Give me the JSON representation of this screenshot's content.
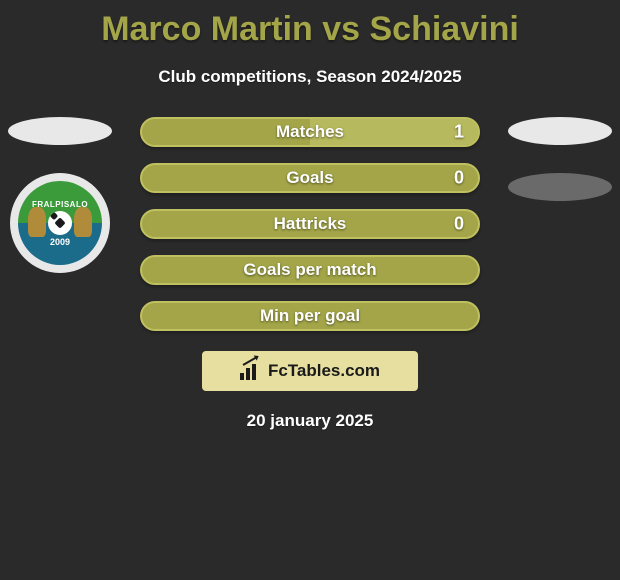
{
  "background_color": "#2a2a2a",
  "title": {
    "text": "Marco Martin vs Schiavini",
    "color": "#a3a548",
    "fontsize": 34
  },
  "subtitle": {
    "text": "Club competitions, Season 2024/2025",
    "color": "#ffffff",
    "fontsize": 17
  },
  "left_side": {
    "ellipse_color": "#e8e8e8",
    "badge": {
      "outer_color": "#e8e8e8",
      "inner_gradient_top": "#3b9b3b",
      "inner_gradient_bottom": "#1b6b8a",
      "text_top": "FRALPISALO",
      "year": "2009",
      "text_color": "#ffffff",
      "ball_color": "#ffffff",
      "ball_spot_color": "#1a1a1a",
      "lion_color": "#b08b3a"
    }
  },
  "right_side": {
    "ellipse1_color": "#e8e8e8",
    "ellipse2_color": "#6a6a6a"
  },
  "bars": {
    "fill_color": "#a3a548",
    "border_color": "#bfc060",
    "text_color": "#ffffff",
    "height": 30,
    "label_fontsize": 17,
    "value_fontsize": 18,
    "rows": [
      {
        "label": "Matches",
        "value_left": "",
        "value_right": "1",
        "right_segment_color": "#b7b95e",
        "right_segment_width_pct": 50
      },
      {
        "label": "Goals",
        "value_left": "",
        "value_right": "0"
      },
      {
        "label": "Hattricks",
        "value_left": "",
        "value_right": "0"
      },
      {
        "label": "Goals per match",
        "value_left": "",
        "value_right": ""
      },
      {
        "label": "Min per goal",
        "value_left": "",
        "value_right": ""
      }
    ]
  },
  "branding": {
    "background": "#e6dfa0",
    "icon_color": "#1a1a1a",
    "text": "FcTables.com",
    "text_color": "#1a1a1a",
    "fontsize": 17
  },
  "date": {
    "text": "20 january 2025",
    "color": "#ffffff",
    "fontsize": 17
  }
}
